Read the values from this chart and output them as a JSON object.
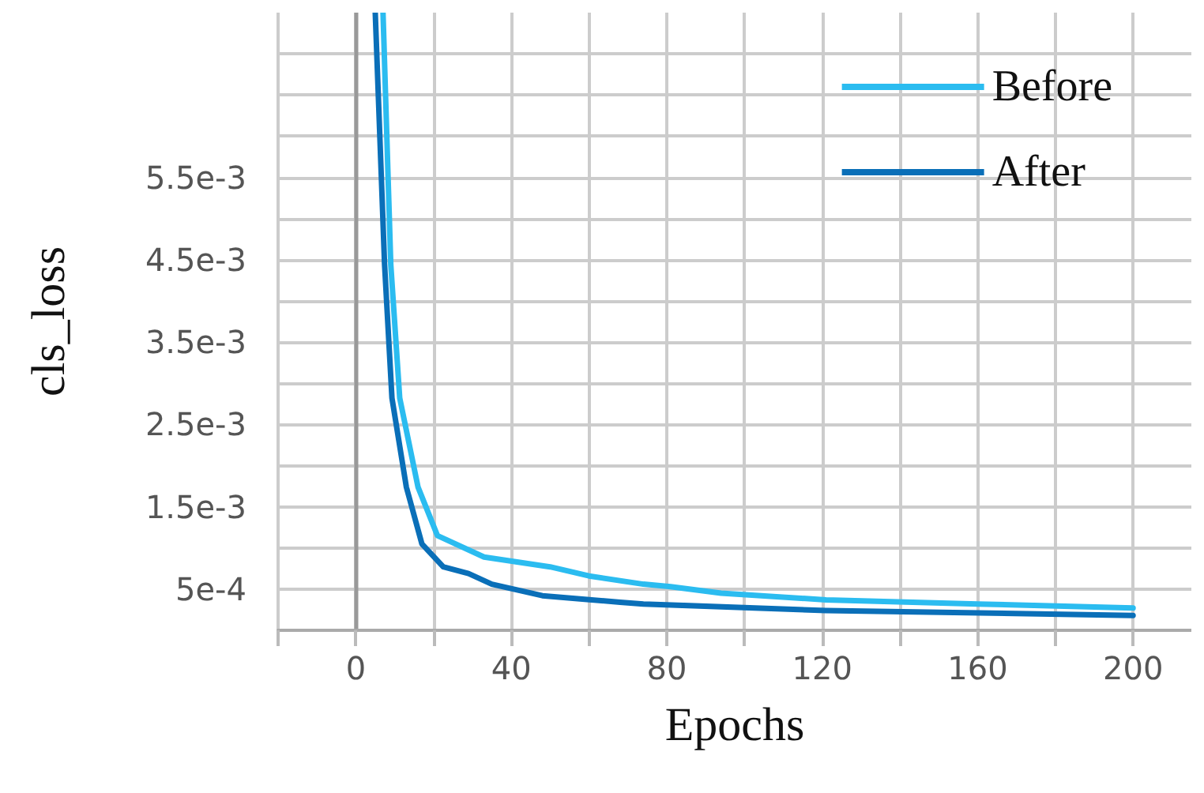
{
  "chart_data": {
    "type": "line",
    "xlabel": "Epochs",
    "ylabel": "cls_loss",
    "xlim": [
      -20,
      215
    ],
    "xticks": [
      {
        "value": -20,
        "label": null
      },
      0,
      {
        "value": 20,
        "label": null
      },
      40,
      {
        "value": 60,
        "label": null
      },
      80,
      {
        "value": 100,
        "label": null
      },
      120,
      {
        "value": 140,
        "label": null
      },
      160,
      {
        "value": 180,
        "label": null
      },
      200
    ],
    "ylim": [
      0,
      0.0075
    ],
    "yticks": [
      {
        "value": 0,
        "label": null
      },
      {
        "value": 0.0005,
        "label": "5e-4"
      },
      {
        "value": 0.001,
        "label": null
      },
      {
        "value": 0.0015,
        "label": "1.5e-3"
      },
      {
        "value": 0.002,
        "label": null
      },
      {
        "value": 0.0025,
        "label": "2.5e-3"
      },
      {
        "value": 0.003,
        "label": null
      },
      {
        "value": 0.0035,
        "label": "3.5e-3"
      },
      {
        "value": 0.004,
        "label": null
      },
      {
        "value": 0.0045,
        "label": "4.5e-3"
      },
      {
        "value": 0.005,
        "label": null
      },
      {
        "value": 0.0055,
        "label": "5.5e-3"
      },
      {
        "value": 0.006,
        "label": null
      },
      {
        "value": 0.0065,
        "label": null
      },
      {
        "value": 0.007,
        "label": null
      }
    ],
    "series": [
      {
        "name": "Before",
        "color": "#2bbcf0",
        "x": [
          7,
          9,
          11.3,
          16,
          21,
          33,
          50,
          60,
          74,
          81,
          94,
          121,
          160,
          200
        ],
        "values": [
          0.0075,
          0.00444,
          0.00282,
          0.00174,
          0.00115,
          0.00089,
          0.00077,
          0.00066,
          0.00056,
          0.00053,
          0.00045,
          0.00037,
          0.00032,
          0.00027
        ]
      },
      {
        "name": "After",
        "color": "#0a6fb8",
        "x": [
          5,
          7.4,
          9.3,
          13,
          17,
          22.5,
          29,
          35,
          48,
          68,
          74,
          121,
          200
        ],
        "values": [
          0.0075,
          0.00444,
          0.00282,
          0.00174,
          0.00105,
          0.00077,
          0.00069,
          0.00056,
          0.00042,
          0.00034,
          0.00032,
          0.00024,
          0.00018
        ]
      }
    ],
    "grid": true,
    "legend": "top right",
    "marker": "none",
    "line_style": "solid"
  }
}
